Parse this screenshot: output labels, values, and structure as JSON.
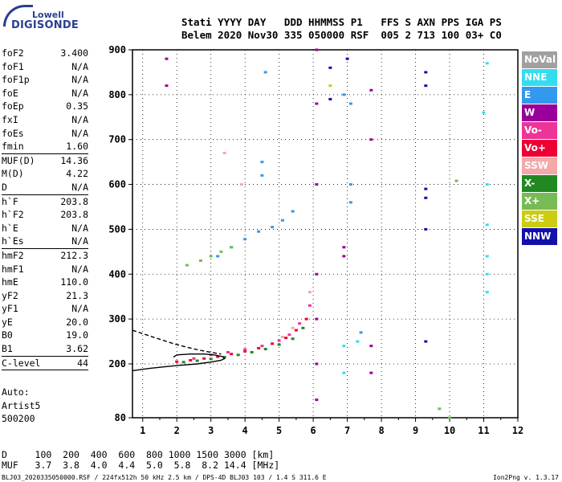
{
  "logo": {
    "line1": "Lowell",
    "line2": "DIGISONDE"
  },
  "header": {
    "row1": "Stati YYYY DAY   DDD HHMMSS P1   FFS S AXN PPS IGA PS",
    "row2": "Belem 2020 Nov30 335 050000 RSF  005 2 713 100 03+ C0"
  },
  "parameters": [
    {
      "name": "foF2",
      "value": "3.400"
    },
    {
      "name": "foF1",
      "value": "N/A"
    },
    {
      "name": "foF1p",
      "value": "N/A"
    },
    {
      "name": "foE",
      "value": "N/A"
    },
    {
      "name": "foEp",
      "value": "0.35"
    },
    {
      "name": "fxI",
      "value": "N/A"
    },
    {
      "name": "foEs",
      "value": "N/A"
    },
    {
      "name": "fmin",
      "value": "1.60",
      "separator": true
    },
    {
      "name": "MUF(D)",
      "value": "14.36"
    },
    {
      "name": "M(D)",
      "value": "4.22"
    },
    {
      "name": "D",
      "value": "N/A",
      "separator": true
    },
    {
      "name": "h`F",
      "value": "203.8"
    },
    {
      "name": "h`F2",
      "value": "203.8"
    },
    {
      "name": "h`E",
      "value": "N/A"
    },
    {
      "name": "h`Es",
      "value": "N/A",
      "separator": true
    },
    {
      "name": "hmF2",
      "value": "212.3"
    },
    {
      "name": "hmF1",
      "value": "N/A"
    },
    {
      "name": "hmE",
      "value": "110.0"
    },
    {
      "name": "yF2",
      "value": "21.3"
    },
    {
      "name": "yF1",
      "value": "N/A"
    },
    {
      "name": "yE",
      "value": "20.0"
    },
    {
      "name": "B0",
      "value": "19.0"
    },
    {
      "name": "B1",
      "value": "3.62",
      "separator": true
    },
    {
      "name": "C-level",
      "value": "44",
      "separator": true
    }
  ],
  "auto": {
    "line1": "Auto:",
    "line2": "Artist5",
    "line3": "500200"
  },
  "scale_table": {
    "d_row": "D     100  200  400  600  800 1000 1500 3000 [km]",
    "muf_row": "MUF   3.7  3.8  4.0  4.4  5.0  5.8  8.2 14.4 [MHz]"
  },
  "footer": "BLJ03_2020335050000.RSF / 224fx512h 50 kHz 2.5 km / DPS-4D BLJ03 103 / 1.4 S 311.6 E",
  "version": "Ion2Png v. 1.3.17",
  "legend": [
    {
      "label": "NoVal",
      "color": "#a0a0a0"
    },
    {
      "label": "NNE",
      "color": "#33ddee"
    },
    {
      "label": "E",
      "color": "#3399ee"
    },
    {
      "label": "W",
      "color": "#990099"
    },
    {
      "label": "Vo-",
      "color": "#ee3399"
    },
    {
      "label": "Vo+",
      "color": "#ee0033"
    },
    {
      "label": "SSW",
      "color": "#f4a8a8"
    },
    {
      "label": "X-",
      "color": "#228822"
    },
    {
      "label": "X+",
      "color": "#77bb55"
    },
    {
      "label": "SSE",
      "color": "#cccc11"
    },
    {
      "label": "NNW",
      "color": "#1111aa"
    }
  ],
  "chart_data": {
    "type": "scatter",
    "xlabel": "",
    "ylabel": "",
    "xlim": [
      0.7,
      12
    ],
    "ylim": [
      80,
      900
    ],
    "xticks": [
      "1",
      "2",
      "3",
      "4",
      "5",
      "6",
      "7",
      "8",
      "9",
      "10",
      "11",
      "12"
    ],
    "yticks": [
      "80",
      "200",
      "300",
      "400",
      "500",
      "600",
      "700",
      "800",
      "900"
    ],
    "grid": true,
    "series": [
      {
        "color": "#ee0033",
        "points": [
          [
            2.0,
            205
          ],
          [
            2.4,
            208
          ],
          [
            2.8,
            212
          ],
          [
            3.2,
            216
          ],
          [
            3.6,
            222
          ],
          [
            4.0,
            228
          ],
          [
            4.4,
            235
          ],
          [
            4.8,
            245
          ],
          [
            5.2,
            258
          ],
          [
            5.5,
            275
          ],
          [
            5.8,
            300
          ]
        ]
      },
      {
        "color": "#228822",
        "points": [
          [
            2.2,
            204
          ],
          [
            2.6,
            207
          ],
          [
            3.0,
            211
          ],
          [
            3.4,
            215
          ],
          [
            3.8,
            220
          ],
          [
            4.2,
            226
          ],
          [
            4.6,
            233
          ],
          [
            5.0,
            243
          ],
          [
            5.4,
            256
          ],
          [
            5.7,
            280
          ]
        ]
      },
      {
        "color": "#ee3399",
        "points": [
          [
            2.5,
            212
          ],
          [
            3.0,
            220
          ],
          [
            3.5,
            226
          ],
          [
            4.0,
            232
          ],
          [
            4.5,
            240
          ],
          [
            5.0,
            252
          ],
          [
            5.3,
            265
          ],
          [
            5.6,
            290
          ],
          [
            5.9,
            330
          ]
        ]
      },
      {
        "color": "#3399ee",
        "points": [
          [
            3.2,
            440
          ],
          [
            3.6,
            460
          ],
          [
            4.0,
            478
          ],
          [
            4.4,
            495
          ],
          [
            4.8,
            505
          ],
          [
            5.1,
            520
          ],
          [
            5.4,
            540
          ],
          [
            4.6,
            850
          ],
          [
            4.5,
            620
          ],
          [
            4.5,
            650
          ],
          [
            6.9,
            800
          ],
          [
            7.1,
            780
          ],
          [
            7.1,
            600
          ],
          [
            7.1,
            560
          ],
          [
            7.4,
            270
          ]
        ]
      },
      {
        "color": "#990099",
        "points": [
          [
            6.1,
            900
          ],
          [
            6.1,
            780
          ],
          [
            6.1,
            600
          ],
          [
            6.1,
            400
          ],
          [
            6.1,
            300
          ],
          [
            6.1,
            200
          ],
          [
            6.1,
            120
          ],
          [
            6.9,
            440
          ],
          [
            6.9,
            460
          ],
          [
            7.7,
            810
          ],
          [
            7.7,
            700
          ],
          [
            7.7,
            240
          ],
          [
            7.7,
            180
          ],
          [
            1.7,
            820
          ],
          [
            1.7,
            880
          ]
        ]
      },
      {
        "color": "#33ddee",
        "points": [
          [
            11.1,
            870
          ],
          [
            11.1,
            600
          ],
          [
            11.1,
            510
          ],
          [
            11.1,
            440
          ],
          [
            11.1,
            400
          ],
          [
            11.1,
            360
          ],
          [
            11.0,
            760
          ],
          [
            6.9,
            240
          ],
          [
            6.9,
            180
          ],
          [
            7.3,
            250
          ]
        ]
      },
      {
        "color": "#1111aa",
        "points": [
          [
            9.3,
            850
          ],
          [
            9.3,
            820
          ],
          [
            9.3,
            590
          ],
          [
            9.3,
            570
          ],
          [
            9.3,
            500
          ],
          [
            9.3,
            250
          ],
          [
            6.5,
            860
          ],
          [
            6.5,
            790
          ],
          [
            7.0,
            880
          ]
        ]
      },
      {
        "color": "#77bb55",
        "points": [
          [
            2.3,
            420
          ],
          [
            2.7,
            430
          ],
          [
            3.0,
            440
          ],
          [
            3.3,
            450
          ],
          [
            3.6,
            460
          ],
          [
            9.7,
            100
          ],
          [
            10.2,
            608
          ],
          [
            10.0,
            80
          ]
        ]
      },
      {
        "color": "#f4a8a8",
        "points": [
          [
            3.4,
            670
          ],
          [
            3.9,
            600
          ],
          [
            5.1,
            260
          ],
          [
            5.4,
            280
          ],
          [
            5.9,
            360
          ]
        ]
      },
      {
        "color": "#cccc11",
        "points": [
          [
            6.5,
            820
          ]
        ]
      }
    ],
    "traces": [
      {
        "style": "solid",
        "points": [
          [
            0.7,
            185
          ],
          [
            1.2,
            190
          ],
          [
            1.7,
            194
          ],
          [
            2.1,
            197
          ],
          [
            2.6,
            200
          ],
          [
            3.0,
            204
          ],
          [
            3.3,
            208
          ],
          [
            3.4,
            212
          ],
          [
            3.35,
            216
          ],
          [
            3.1,
            220
          ],
          [
            2.8,
            222
          ],
          [
            2.4,
            222
          ],
          [
            2.0,
            220
          ],
          [
            1.9,
            215
          ]
        ]
      },
      {
        "style": "dashed",
        "points": [
          [
            0.7,
            275
          ],
          [
            1.1,
            265
          ],
          [
            1.5,
            255
          ],
          [
            1.9,
            245
          ],
          [
            2.3,
            237
          ],
          [
            2.7,
            230
          ],
          [
            3.0,
            226
          ],
          [
            3.3,
            222
          ]
        ]
      }
    ]
  }
}
